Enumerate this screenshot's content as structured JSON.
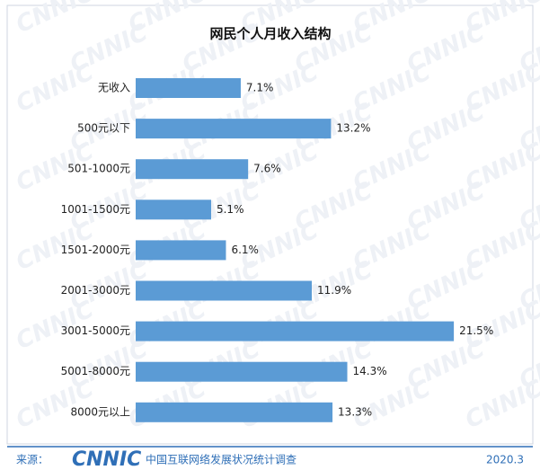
{
  "chart_data": {
    "type": "bar",
    "orientation": "horizontal",
    "title": "网民个人月收入结构",
    "categories": [
      "无收入",
      "500元以下",
      "501-1000元",
      "1001-1500元",
      "1501-2000元",
      "2001-3000元",
      "3001-5000元",
      "5001-8000元",
      "8000元以上"
    ],
    "values": [
      7.1,
      13.2,
      7.6,
      5.1,
      6.1,
      11.9,
      21.5,
      14.3,
      13.3
    ],
    "value_labels": [
      "7.1%",
      "13.2%",
      "7.6%",
      "5.1%",
      "6.1%",
      "11.9%",
      "21.5%",
      "14.3%",
      "13.3%"
    ],
    "color": "#5b9bd5"
  },
  "footer": {
    "source_label": "来源：",
    "logo": "CNNIC",
    "source": "中国互联网络发展状况统计调查",
    "date": "2020.3"
  },
  "watermark": "CNNIC"
}
